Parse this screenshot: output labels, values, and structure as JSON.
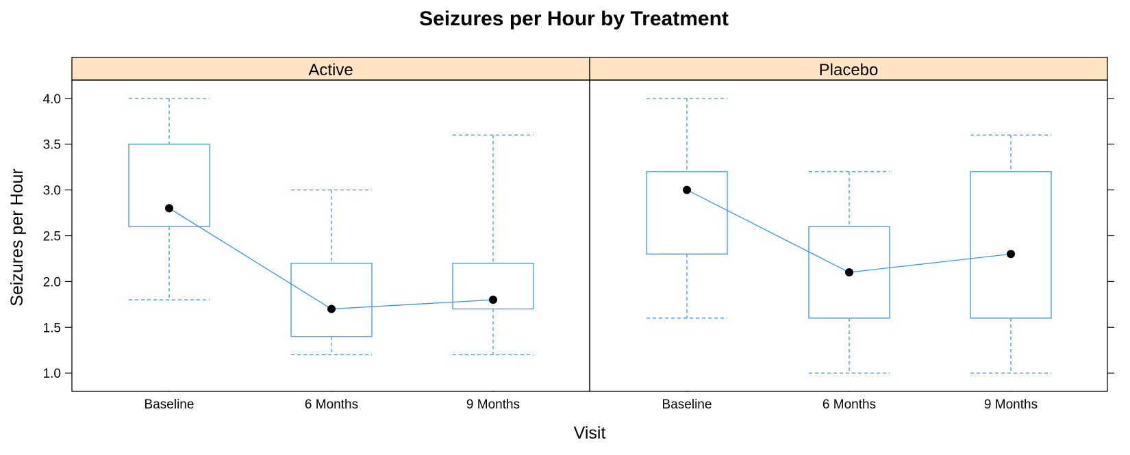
{
  "chart_data": {
    "type": "box",
    "title": "Seizures per Hour by Treatment",
    "xlabel": "Visit",
    "ylabel": "Seizures per Hour",
    "ylim": [
      0.8,
      4.2
    ],
    "yticks": [
      1.0,
      1.5,
      2.0,
      2.5,
      3.0,
      3.5,
      4.0
    ],
    "ytick_labels": [
      "1.0",
      "1.5",
      "2.0",
      "2.5",
      "3.0",
      "3.5",
      "4.0"
    ],
    "categories": [
      "Baseline",
      "6 Months",
      "9 Months"
    ],
    "colors": {
      "box": "#3a96e6",
      "point": "#000000",
      "strip": "#ffe4c4",
      "frame": "#000000"
    },
    "panels": [
      {
        "name": "Active",
        "boxes": [
          {
            "category": "Baseline",
            "whisker_low": 1.8,
            "q1": 2.6,
            "q3": 3.5,
            "whisker_high": 4.0,
            "mean": 2.8
          },
          {
            "category": "6 Months",
            "whisker_low": 1.2,
            "q1": 1.4,
            "q3": 2.2,
            "whisker_high": 3.0,
            "mean": 1.7
          },
          {
            "category": "9 Months",
            "whisker_low": 1.2,
            "q1": 1.7,
            "q3": 2.2,
            "whisker_high": 3.6,
            "mean": 1.8
          }
        ]
      },
      {
        "name": "Placebo",
        "boxes": [
          {
            "category": "Baseline",
            "whisker_low": 1.6,
            "q1": 2.3,
            "q3": 3.2,
            "whisker_high": 4.0,
            "mean": 3.0
          },
          {
            "category": "6 Months",
            "whisker_low": 1.0,
            "q1": 1.6,
            "q3": 2.6,
            "whisker_high": 3.2,
            "mean": 2.1
          },
          {
            "category": "9 Months",
            "whisker_low": 1.0,
            "q1": 1.6,
            "q3": 3.2,
            "whisker_high": 3.6,
            "mean": 2.3
          }
        ]
      }
    ]
  }
}
